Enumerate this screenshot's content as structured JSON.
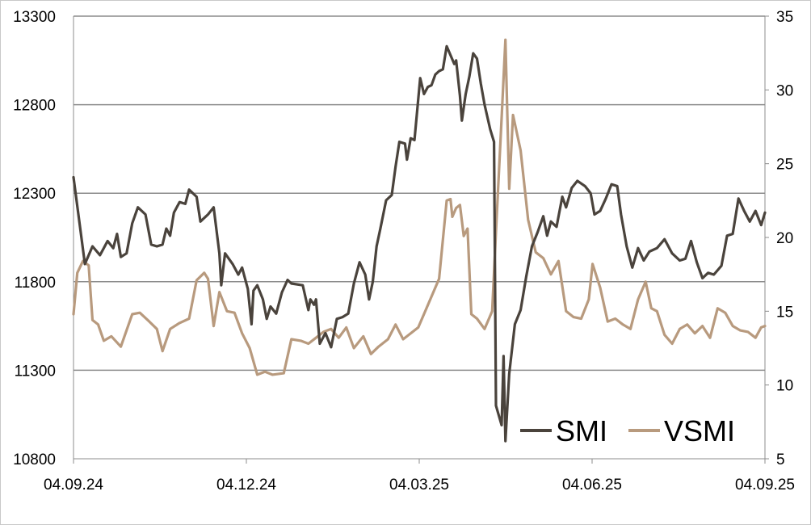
{
  "chart_data": {
    "type": "line",
    "title": "",
    "xlabel": "",
    "ylabel": "",
    "grid": true,
    "legend_position": "bottom-right",
    "x_tick_labels": [
      "04.09.24",
      "04.12.24",
      "04.03.25",
      "04.06.25",
      "04.09.25"
    ],
    "y_left": {
      "lim": [
        10800,
        13300
      ],
      "ticks": [
        10800,
        11300,
        11800,
        12300,
        12800,
        13300
      ]
    },
    "y_right": {
      "lim": [
        5,
        35
      ],
      "ticks": [
        5,
        10,
        15,
        20,
        25,
        30,
        35
      ]
    },
    "x_range": [
      "2024-09-04",
      "2025-09-04"
    ],
    "series": [
      {
        "name": "SMI",
        "axis": "left",
        "color": "#4a433c",
        "points": [
          [
            "2024-09-04",
            12390
          ],
          [
            "2024-09-10",
            11900
          ],
          [
            "2024-09-14",
            12000
          ],
          [
            "2024-09-18",
            11950
          ],
          [
            "2024-09-22",
            12030
          ],
          [
            "2024-09-25",
            11990
          ],
          [
            "2024-09-27",
            12070
          ],
          [
            "2024-09-29",
            11940
          ],
          [
            "2024-10-02",
            11960
          ],
          [
            "2024-10-05",
            12130
          ],
          [
            "2024-10-08",
            12220
          ],
          [
            "2024-10-12",
            12180
          ],
          [
            "2024-10-15",
            12010
          ],
          [
            "2024-10-18",
            12000
          ],
          [
            "2024-10-21",
            12010
          ],
          [
            "2024-10-23",
            12100
          ],
          [
            "2024-10-25",
            12060
          ],
          [
            "2024-10-27",
            12190
          ],
          [
            "2024-10-30",
            12250
          ],
          [
            "2024-11-02",
            12240
          ],
          [
            "2024-11-04",
            12320
          ],
          [
            "2024-11-08",
            12280
          ],
          [
            "2024-11-10",
            12140
          ],
          [
            "2024-11-14",
            12180
          ],
          [
            "2024-11-17",
            12220
          ],
          [
            "2024-11-20",
            11960
          ],
          [
            "2024-11-21",
            11780
          ],
          [
            "2024-11-23",
            11960
          ],
          [
            "2024-11-27",
            11900
          ],
          [
            "2024-11-30",
            11840
          ],
          [
            "2024-12-02",
            11880
          ],
          [
            "2024-12-04",
            11800
          ],
          [
            "2024-12-05",
            11760
          ],
          [
            "2024-12-07",
            11560
          ],
          [
            "2024-12-08",
            11750
          ],
          [
            "2024-12-10",
            11780
          ],
          [
            "2024-12-13",
            11700
          ],
          [
            "2024-12-15",
            11590
          ],
          [
            "2024-12-17",
            11660
          ],
          [
            "2024-12-20",
            11620
          ],
          [
            "2024-12-23",
            11740
          ],
          [
            "2024-12-26",
            11810
          ],
          [
            "2024-12-28",
            11790
          ],
          [
            "2025-01-03",
            11780
          ],
          [
            "2025-01-06",
            11640
          ],
          [
            "2025-01-07",
            11700
          ],
          [
            "2025-01-09",
            11670
          ],
          [
            "2025-01-10",
            11700
          ],
          [
            "2025-01-12",
            11450
          ],
          [
            "2025-01-15",
            11510
          ],
          [
            "2025-01-18",
            11430
          ],
          [
            "2025-01-21",
            11590
          ],
          [
            "2025-01-24",
            11600
          ],
          [
            "2025-01-27",
            11620
          ],
          [
            "2025-01-30",
            11790
          ],
          [
            "2025-02-02",
            11910
          ],
          [
            "2025-02-05",
            11840
          ],
          [
            "2025-02-07",
            11700
          ],
          [
            "2025-02-09",
            11800
          ],
          [
            "2025-02-11",
            12000
          ],
          [
            "2025-02-13",
            12100
          ],
          [
            "2025-02-16",
            12260
          ],
          [
            "2025-02-19",
            12290
          ],
          [
            "2025-02-21",
            12450
          ],
          [
            "2025-02-23",
            12590
          ],
          [
            "2025-02-26",
            12580
          ],
          [
            "2025-02-27",
            12490
          ],
          [
            "2025-03-01",
            12610
          ],
          [
            "2025-03-03",
            12600
          ],
          [
            "2025-03-06",
            12950
          ],
          [
            "2025-03-08",
            12860
          ],
          [
            "2025-03-10",
            12900
          ],
          [
            "2025-03-12",
            12910
          ],
          [
            "2025-03-14",
            12970
          ],
          [
            "2025-03-16",
            12990
          ],
          [
            "2025-03-18",
            13000
          ],
          [
            "2025-03-20",
            13130
          ],
          [
            "2025-03-22",
            13080
          ],
          [
            "2025-03-24",
            13030
          ],
          [
            "2025-03-25",
            13050
          ],
          [
            "2025-03-27",
            12850
          ],
          [
            "2025-03-28",
            12710
          ],
          [
            "2025-03-30",
            12860
          ],
          [
            "2025-04-01",
            12960
          ],
          [
            "2025-04-03",
            13090
          ],
          [
            "2025-04-05",
            13060
          ],
          [
            "2025-04-07",
            12920
          ],
          [
            "2025-04-09",
            12800
          ],
          [
            "2025-04-12",
            12660
          ],
          [
            "2025-04-14",
            12590
          ],
          [
            "2025-04-15",
            11100
          ],
          [
            "2025-04-18",
            10990
          ],
          [
            "2025-04-19",
            11380
          ],
          [
            "2025-04-20",
            10900
          ],
          [
            "2025-04-22",
            11280
          ],
          [
            "2025-04-25",
            11560
          ],
          [
            "2025-04-28",
            11640
          ],
          [
            "2025-05-01",
            11830
          ],
          [
            "2025-05-04",
            12000
          ],
          [
            "2025-05-07",
            12080
          ],
          [
            "2025-05-10",
            12170
          ],
          [
            "2025-05-12",
            12060
          ],
          [
            "2025-05-14",
            12140
          ],
          [
            "2025-05-17",
            12110
          ],
          [
            "2025-05-20",
            12280
          ],
          [
            "2025-05-22",
            12220
          ],
          [
            "2025-05-25",
            12330
          ],
          [
            "2025-05-28",
            12370
          ],
          [
            "2025-06-01",
            12340
          ],
          [
            "2025-06-04",
            12300
          ],
          [
            "2025-06-06",
            12180
          ],
          [
            "2025-06-09",
            12200
          ],
          [
            "2025-06-12",
            12270
          ],
          [
            "2025-06-15",
            12350
          ],
          [
            "2025-06-18",
            12340
          ],
          [
            "2025-06-20",
            12180
          ],
          [
            "2025-06-23",
            12000
          ],
          [
            "2025-06-26",
            11880
          ],
          [
            "2025-06-29",
            11990
          ],
          [
            "2025-07-02",
            11920
          ],
          [
            "2025-07-05",
            11970
          ],
          [
            "2025-07-09",
            11990
          ],
          [
            "2025-07-13",
            12040
          ],
          [
            "2025-07-17",
            11960
          ],
          [
            "2025-07-21",
            11920
          ],
          [
            "2025-07-24",
            11930
          ],
          [
            "2025-07-27",
            12030
          ],
          [
            "2025-07-30",
            11910
          ],
          [
            "2025-08-02",
            11820
          ],
          [
            "2025-08-05",
            11850
          ],
          [
            "2025-08-08",
            11840
          ],
          [
            "2025-08-12",
            11890
          ],
          [
            "2025-08-15",
            12060
          ],
          [
            "2025-08-18",
            12070
          ],
          [
            "2025-08-21",
            12270
          ],
          [
            "2025-08-24",
            12200
          ],
          [
            "2025-08-27",
            12140
          ],
          [
            "2025-08-30",
            12200
          ],
          [
            "2025-09-02",
            12120
          ],
          [
            "2025-09-04",
            12190
          ]
        ]
      },
      {
        "name": "VSMI",
        "axis": "right",
        "color": "#b89a7e",
        "points": [
          [
            "2024-09-04",
            14.8
          ],
          [
            "2024-09-06",
            17.6
          ],
          [
            "2024-09-09",
            18.4
          ],
          [
            "2024-09-12",
            18.1
          ],
          [
            "2024-09-14",
            14.4
          ],
          [
            "2024-09-17",
            14.1
          ],
          [
            "2024-09-20",
            13.0
          ],
          [
            "2024-09-24",
            13.3
          ],
          [
            "2024-09-29",
            12.6
          ],
          [
            "2024-10-05",
            14.8
          ],
          [
            "2024-10-09",
            14.9
          ],
          [
            "2024-10-14",
            14.3
          ],
          [
            "2024-10-18",
            13.8
          ],
          [
            "2024-10-21",
            12.3
          ],
          [
            "2024-10-25",
            13.8
          ],
          [
            "2024-10-30",
            14.2
          ],
          [
            "2024-11-04",
            14.5
          ],
          [
            "2024-11-08",
            17.1
          ],
          [
            "2024-11-12",
            17.6
          ],
          [
            "2024-11-14",
            17.2
          ],
          [
            "2024-11-17",
            14.0
          ],
          [
            "2024-11-20",
            16.3
          ],
          [
            "2024-11-24",
            15.0
          ],
          [
            "2024-11-28",
            14.9
          ],
          [
            "2024-12-02",
            13.5
          ],
          [
            "2024-12-06",
            12.5
          ],
          [
            "2024-12-10",
            10.7
          ],
          [
            "2024-12-14",
            10.9
          ],
          [
            "2024-12-18",
            10.7
          ],
          [
            "2024-12-24",
            10.8
          ],
          [
            "2024-12-28",
            13.1
          ],
          [
            "2025-01-02",
            13.0
          ],
          [
            "2025-01-06",
            12.8
          ],
          [
            "2025-01-10",
            13.2
          ],
          [
            "2025-01-14",
            13.6
          ],
          [
            "2025-01-18",
            13.8
          ],
          [
            "2025-01-22",
            13.2
          ],
          [
            "2025-01-26",
            13.9
          ],
          [
            "2025-01-30",
            12.5
          ],
          [
            "2025-02-04",
            13.3
          ],
          [
            "2025-02-08",
            12.1
          ],
          [
            "2025-02-12",
            12.6
          ],
          [
            "2025-02-17",
            13.1
          ],
          [
            "2025-02-21",
            14.1
          ],
          [
            "2025-02-25",
            13.1
          ],
          [
            "2025-03-01",
            13.5
          ],
          [
            "2025-03-05",
            13.9
          ],
          [
            "2025-03-09",
            15.1
          ],
          [
            "2025-03-12",
            16.0
          ],
          [
            "2025-03-16",
            17.2
          ],
          [
            "2025-03-20",
            22.5
          ],
          [
            "2025-03-22",
            22.6
          ],
          [
            "2025-03-23",
            21.4
          ],
          [
            "2025-03-25",
            22.0
          ],
          [
            "2025-03-27",
            22.2
          ],
          [
            "2025-03-29",
            20.1
          ],
          [
            "2025-03-31",
            20.6
          ],
          [
            "2025-04-02",
            14.8
          ],
          [
            "2025-04-05",
            14.5
          ],
          [
            "2025-04-09",
            13.8
          ],
          [
            "2025-04-13",
            15.0
          ],
          [
            "2025-04-15",
            20.4
          ],
          [
            "2025-04-18",
            28.1
          ],
          [
            "2025-04-20",
            33.4
          ],
          [
            "2025-04-22",
            23.3
          ],
          [
            "2025-04-24",
            28.3
          ],
          [
            "2025-04-28",
            25.9
          ],
          [
            "2025-05-02",
            21.2
          ],
          [
            "2025-05-06",
            19.0
          ],
          [
            "2025-05-10",
            18.6
          ],
          [
            "2025-05-14",
            17.5
          ],
          [
            "2025-05-18",
            18.4
          ],
          [
            "2025-05-22",
            15.0
          ],
          [
            "2025-05-26",
            14.6
          ],
          [
            "2025-05-30",
            14.5
          ],
          [
            "2025-06-03",
            15.8
          ],
          [
            "2025-06-05",
            18.2
          ],
          [
            "2025-06-09",
            16.6
          ],
          [
            "2025-06-13",
            14.3
          ],
          [
            "2025-06-17",
            14.5
          ],
          [
            "2025-06-21",
            14.1
          ],
          [
            "2025-06-25",
            13.8
          ],
          [
            "2025-06-29",
            15.8
          ],
          [
            "2025-07-03",
            17.0
          ],
          [
            "2025-07-06",
            15.2
          ],
          [
            "2025-07-09",
            15.0
          ],
          [
            "2025-07-13",
            13.4
          ],
          [
            "2025-07-17",
            12.8
          ],
          [
            "2025-07-21",
            13.8
          ],
          [
            "2025-07-25",
            14.1
          ],
          [
            "2025-07-29",
            13.5
          ],
          [
            "2025-08-02",
            14.0
          ],
          [
            "2025-08-06",
            13.2
          ],
          [
            "2025-08-10",
            15.2
          ],
          [
            "2025-08-14",
            14.9
          ],
          [
            "2025-08-18",
            14.0
          ],
          [
            "2025-08-22",
            13.7
          ],
          [
            "2025-08-26",
            13.6
          ],
          [
            "2025-08-30",
            13.2
          ],
          [
            "2025-09-02",
            13.9
          ],
          [
            "2025-09-04",
            14.0
          ]
        ]
      }
    ]
  }
}
